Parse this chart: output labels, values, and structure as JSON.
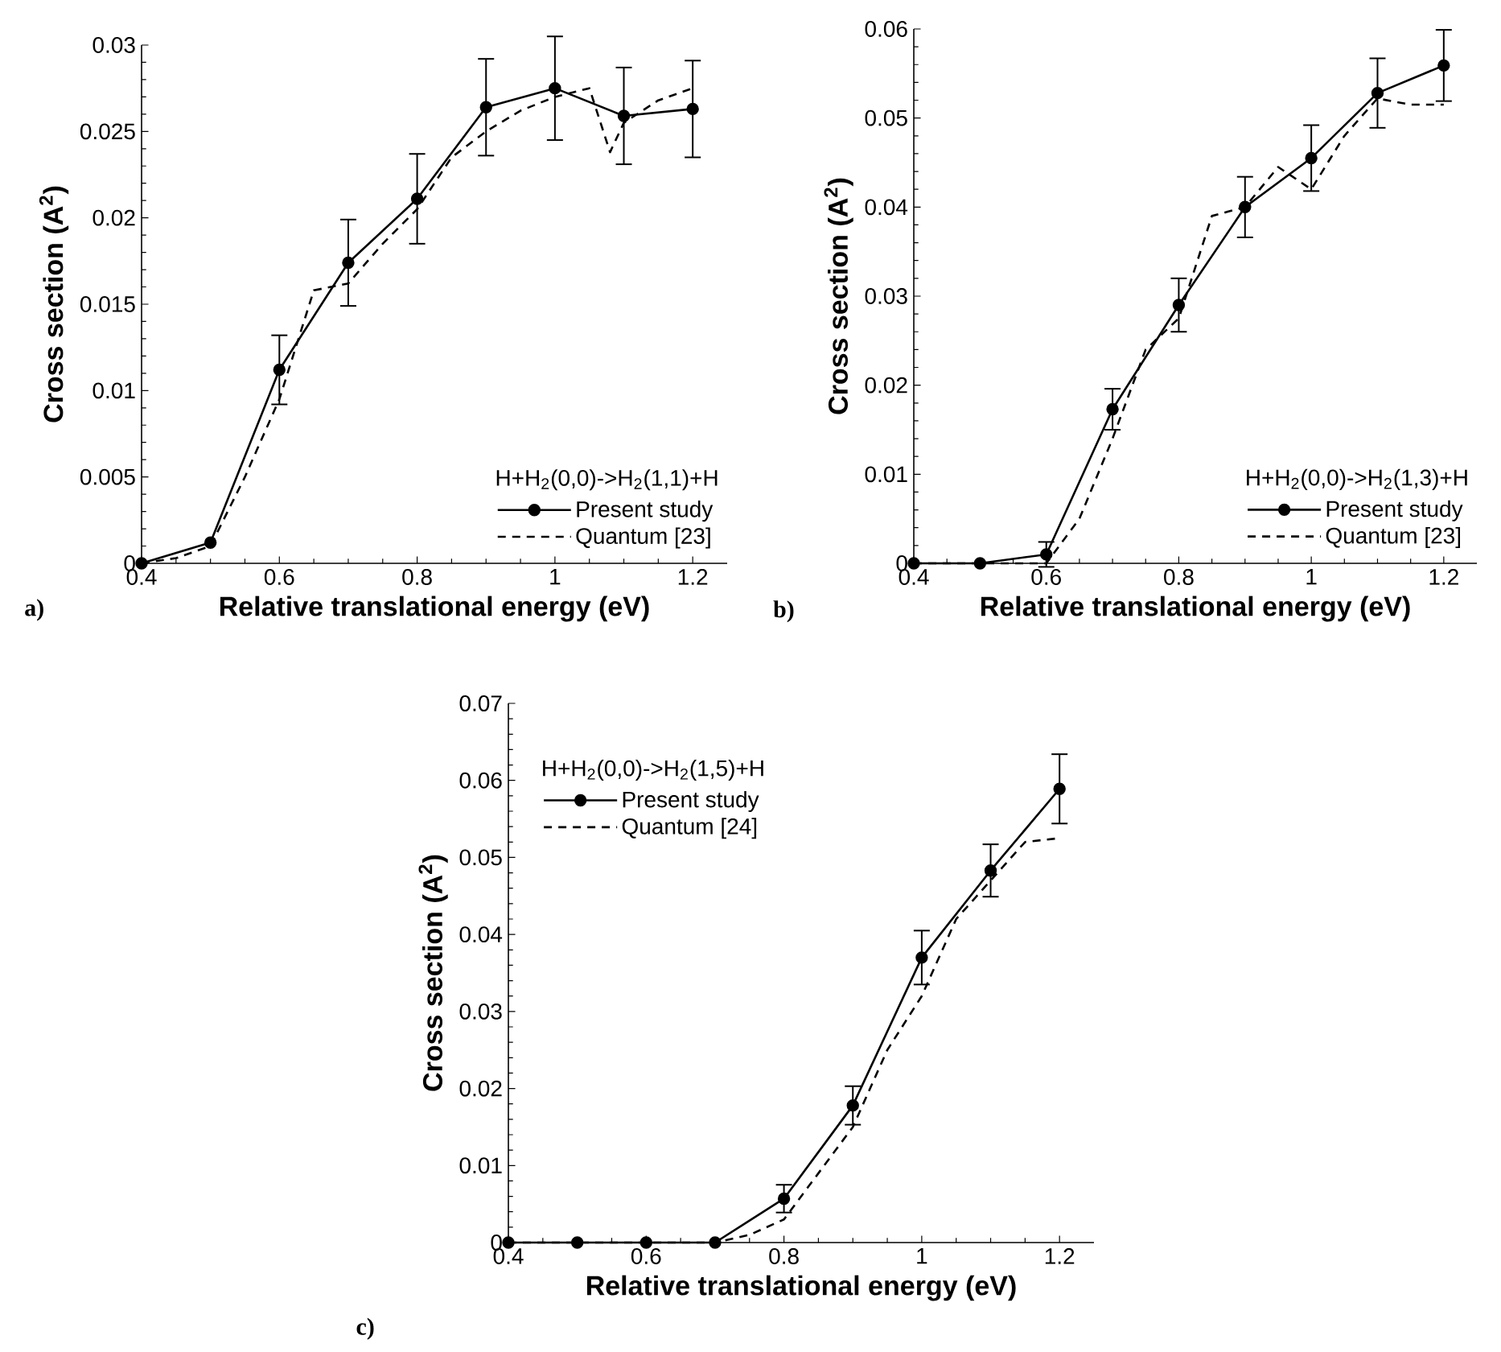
{
  "chart_data": [
    {
      "type": "line",
      "xlabel": "Relative translational energy (eV)",
      "ylabel": "Cross section (A$^{2}$)",
      "legend_title": "H+H$_{2}$(0,0)->H$_{2}$(1,1)+H",
      "legend": "bottom right",
      "annotations": [
        "a)"
      ],
      "xlim": [
        0.4,
        1.25
      ],
      "xticks": [
        0.4,
        0.6,
        0.8,
        1,
        1.2
      ],
      "ylim": [
        0,
        0.03
      ],
      "yticks": [
        0,
        0.005,
        0.01,
        0.015,
        0.02,
        0.025,
        0.03
      ],
      "series": [
        {
          "name": "Present study",
          "color": "#000000",
          "marker": "circle",
          "line_style": "solid",
          "x": [
            0.4,
            0.5,
            0.6,
            0.7,
            0.8,
            0.9,
            1.0,
            1.1,
            1.2
          ],
          "values": [
            0,
            0.0012,
            0.0112,
            0.0174,
            0.0211,
            0.0264,
            0.0275,
            0.0259,
            0.0263
          ],
          "errors": [
            null,
            null,
            0.002,
            0.0025,
            0.0026,
            0.0028,
            0.003,
            0.0028,
            0.0028
          ]
        },
        {
          "name": "Quantum [23]",
          "color": "#000000",
          "marker": "none",
          "line_style": "dashed",
          "x": [
            0.4,
            0.45,
            0.5,
            0.55,
            0.6,
            0.65,
            0.7,
            0.75,
            0.8,
            0.85,
            0.9,
            0.95,
            1.0,
            1.05,
            1.08,
            1.1,
            1.15,
            1.2
          ],
          "values": [
            0,
            0.0003,
            0.001,
            0.005,
            0.0095,
            0.0158,
            0.0162,
            0.0185,
            0.0205,
            0.0235,
            0.025,
            0.0262,
            0.027,
            0.0275,
            0.0238,
            0.0255,
            0.0268,
            0.0275
          ]
        }
      ]
    },
    {
      "type": "line",
      "xlabel": "Relative translational energy (eV)",
      "ylabel": "Cross section (A$^{2}$)",
      "legend_title": "H+H$_{2}$(0,0)->H$_{2}$(1,3)+H",
      "legend": "bottom right",
      "annotations": [
        "b)"
      ],
      "xlim": [
        0.4,
        1.25
      ],
      "xticks": [
        0.4,
        0.6,
        0.8,
        1,
        1.2
      ],
      "ylim": [
        0,
        0.06
      ],
      "yticks": [
        0,
        0.01,
        0.02,
        0.03,
        0.04,
        0.05,
        0.06
      ],
      "series": [
        {
          "name": "Present study",
          "color": "#000000",
          "marker": "circle",
          "line_style": "solid",
          "x": [
            0.4,
            0.5,
            0.6,
            0.7,
            0.8,
            0.9,
            1.0,
            1.1,
            1.2
          ],
          "values": [
            0,
            0,
            0.001,
            0.0173,
            0.029,
            0.04,
            0.0455,
            0.0528,
            0.0559
          ],
          "errors": [
            null,
            null,
            0.0014,
            0.0023,
            0.003,
            0.0034,
            0.0037,
            0.0039,
            0.004
          ]
        },
        {
          "name": "Quantum [23]",
          "color": "#000000",
          "marker": "none",
          "line_style": "dashed",
          "x": [
            0.4,
            0.5,
            0.6,
            0.65,
            0.7,
            0.75,
            0.8,
            0.85,
            0.9,
            0.95,
            1.0,
            1.05,
            1.1,
            1.15,
            1.2
          ],
          "values": [
            0,
            0,
            0,
            0.005,
            0.014,
            0.024,
            0.0275,
            0.039,
            0.04,
            0.0445,
            0.042,
            0.048,
            0.0522,
            0.0515,
            0.0515
          ]
        }
      ]
    },
    {
      "type": "line",
      "xlabel": "Relative translational energy (eV)",
      "ylabel": "Cross section (A$^{2}$)",
      "legend_title": "H+H$_{2}$(0,0)->H$_{2}$(1,5)+H",
      "legend": "top left",
      "annotations": [
        "c)"
      ],
      "xlim": [
        0.4,
        1.25
      ],
      "xticks": [
        0.4,
        0.6,
        0.8,
        1,
        1.2
      ],
      "ylim": [
        0,
        0.07
      ],
      "yticks": [
        0,
        0.01,
        0.02,
        0.03,
        0.04,
        0.05,
        0.06,
        0.07
      ],
      "series": [
        {
          "name": "Present study",
          "color": "#000000",
          "marker": "circle",
          "line_style": "solid",
          "x": [
            0.4,
            0.5,
            0.6,
            0.7,
            0.8,
            0.9,
            1.0,
            1.1,
            1.2
          ],
          "values": [
            0,
            0,
            0,
            0,
            0.0057,
            0.0178,
            0.037,
            0.0483,
            0.0589
          ],
          "errors": [
            null,
            null,
            null,
            null,
            0.0018,
            0.0025,
            0.0035,
            0.0034,
            0.0045
          ]
        },
        {
          "name": "Quantum [24]",
          "color": "#000000",
          "marker": "none",
          "line_style": "dashed",
          "x": [
            0.4,
            0.7,
            0.75,
            0.8,
            0.85,
            0.9,
            0.95,
            1.0,
            1.05,
            1.1,
            1.15,
            1.2
          ],
          "values": [
            0,
            0,
            0.001,
            0.003,
            0.009,
            0.015,
            0.025,
            0.032,
            0.042,
            0.047,
            0.052,
            0.0525
          ]
        }
      ]
    }
  ]
}
